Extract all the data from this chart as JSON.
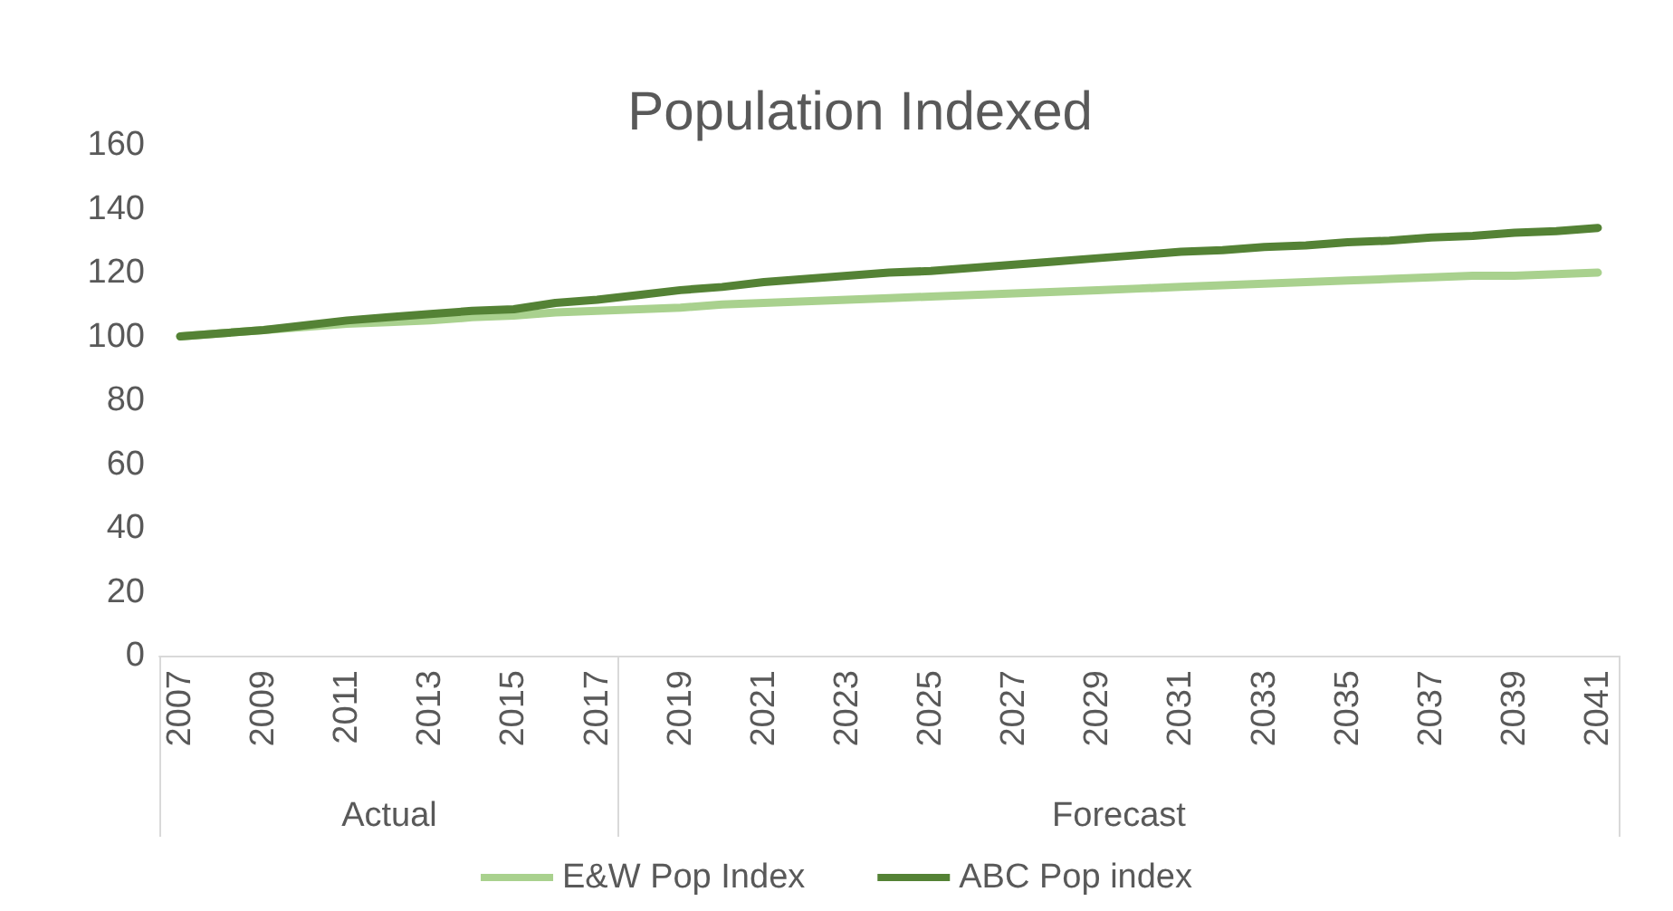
{
  "chart_data": {
    "type": "line",
    "title": "Population Indexed",
    "categories": [
      "2007",
      null,
      "2009",
      null,
      "2011",
      null,
      "2013",
      null,
      "2015",
      null,
      "2017",
      null,
      "2019",
      null,
      "2021",
      null,
      "2023",
      null,
      "2025",
      null,
      "2027",
      null,
      "2029",
      null,
      "2031",
      null,
      "2033",
      null,
      "2035",
      null,
      "2037",
      null,
      "2039",
      null,
      "2041"
    ],
    "series": [
      {
        "name": "E&W Pop Index",
        "color": "#a9d18e",
        "values": [
          100,
          101,
          102,
          103,
          104,
          104.5,
          105,
          106,
          106.5,
          107.5,
          108,
          108.5,
          109,
          110,
          110.5,
          111,
          111.5,
          112,
          112.5,
          113,
          113.5,
          114,
          114.5,
          115,
          115.5,
          116,
          116.5,
          117,
          117.5,
          118,
          118.5,
          119,
          119,
          119.5,
          120
        ]
      },
      {
        "name": "ABC Pop index",
        "color": "#548235",
        "values": [
          100,
          101,
          102,
          103.5,
          105,
          106,
          107,
          108,
          108.5,
          110.5,
          111.5,
          113,
          114.5,
          115.5,
          117,
          118,
          119,
          120,
          120.5,
          121.5,
          122.5,
          123.5,
          124.5,
          125.5,
          126.5,
          127,
          128,
          128.5,
          129.5,
          130,
          131,
          131.5,
          132.5,
          133,
          134
        ]
      }
    ],
    "ylim": [
      0,
      160
    ],
    "yticks": [
      0,
      20,
      40,
      60,
      80,
      100,
      120,
      140,
      160
    ],
    "annotations": [
      "Actual",
      "Forecast"
    ],
    "grid": false,
    "legend": "bottom",
    "marker": "none",
    "line_style": "solid"
  }
}
